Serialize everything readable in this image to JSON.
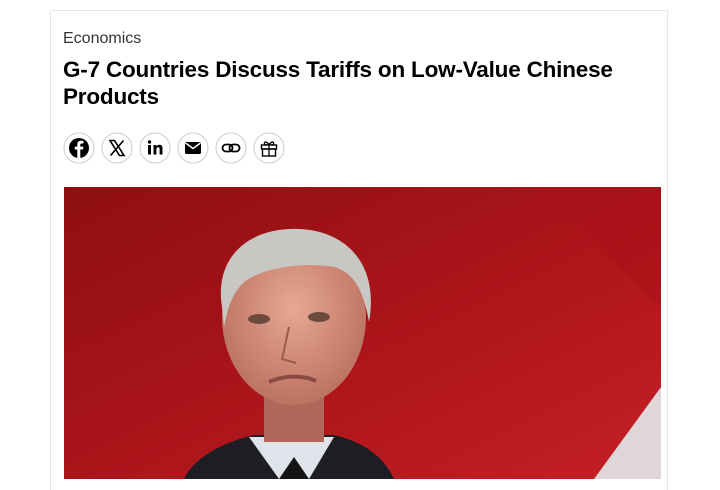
{
  "article": {
    "category": "Economics",
    "title": "G-7 Countries Discuss Tariffs on Low-Value Chinese Products"
  }
}
